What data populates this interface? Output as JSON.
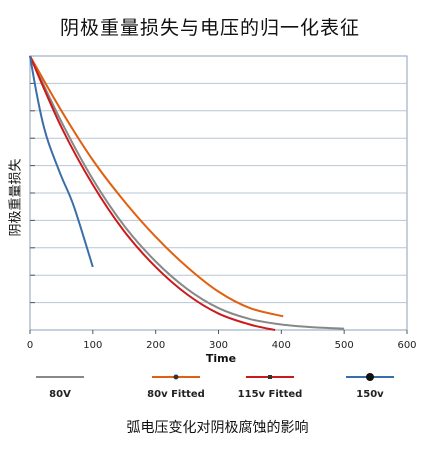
{
  "title": "阴极重量损失与电压的归一化表征",
  "caption": "弧电压变化对阴极腐蚀的影响",
  "chart_data": {
    "type": "line",
    "title": "阴极重量损失与电压的归一化表征",
    "xlabel": "Time",
    "ylabel": "阴极重量损失",
    "xlim": [
      0,
      600
    ],
    "xticks": [
      0,
      100,
      200,
      300,
      400,
      500,
      600
    ],
    "ylim": [
      0,
      1
    ],
    "y_gridlines": 10,
    "grid": true,
    "legend_position": "bottom",
    "series": [
      {
        "name": "80V",
        "color": "#888888",
        "x": [
          0,
          50,
          100,
          150,
          200,
          250,
          300,
          350,
          400,
          450,
          500
        ],
        "y": [
          1.0,
          0.76,
          0.55,
          0.38,
          0.25,
          0.15,
          0.08,
          0.04,
          0.02,
          0.01,
          0.005
        ]
      },
      {
        "name": "80v Fitted",
        "color": "#e06010",
        "x": [
          0,
          50,
          100,
          150,
          200,
          250,
          300,
          350,
          403
        ],
        "y": [
          1.0,
          0.8,
          0.62,
          0.47,
          0.34,
          0.23,
          0.14,
          0.08,
          0.05
        ]
      },
      {
        "name": "115v Fitted",
        "color": "#cc1a1a",
        "x": [
          0,
          50,
          100,
          150,
          200,
          250,
          300,
          350,
          390
        ],
        "y": [
          1.0,
          0.74,
          0.53,
          0.36,
          0.23,
          0.13,
          0.06,
          0.02,
          0.0
        ]
      },
      {
        "name": "150v",
        "color": "#3a6ea8",
        "x": [
          0,
          10,
          20,
          30,
          50,
          70,
          100
        ],
        "y": [
          1.0,
          0.87,
          0.76,
          0.68,
          0.56,
          0.45,
          0.23
        ]
      }
    ]
  }
}
